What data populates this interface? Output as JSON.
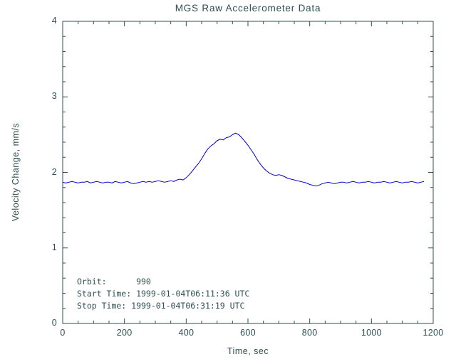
{
  "chart_data": {
    "type": "line",
    "title": "MGS Raw Accelerometer Data",
    "xlabel": "Time, sec",
    "ylabel": "Velocity Change, mm/s",
    "xlim": [
      0,
      1200
    ],
    "ylim": [
      0,
      4
    ],
    "x_ticks": [
      0,
      200,
      400,
      600,
      800,
      1000,
      1200
    ],
    "y_ticks": [
      0,
      1,
      2,
      3,
      4
    ],
    "x_minor_step": 50,
    "y_minor_step": 0.2,
    "grid": false,
    "legend": "none",
    "line_color": "#0000cd",
    "axis_color": "#2f4f4f",
    "background_color": "#ffffff",
    "annotations": [
      "Orbit:      990",
      "Start Time: 1999-01-04T06:11:36 UTC",
      "Stop Time: 1999-01-04T06:31:19 UTC"
    ],
    "series": [
      {
        "name": "velocity_change",
        "x": [
          0,
          10,
          20,
          30,
          40,
          50,
          60,
          70,
          80,
          90,
          100,
          110,
          120,
          130,
          140,
          150,
          160,
          170,
          180,
          190,
          200,
          210,
          220,
          230,
          240,
          250,
          260,
          270,
          280,
          290,
          300,
          310,
          320,
          330,
          340,
          350,
          360,
          370,
          380,
          390,
          400,
          410,
          420,
          430,
          440,
          450,
          460,
          470,
          480,
          490,
          500,
          510,
          520,
          530,
          540,
          550,
          560,
          570,
          580,
          590,
          600,
          610,
          620,
          630,
          640,
          650,
          660,
          670,
          680,
          690,
          700,
          710,
          720,
          730,
          740,
          750,
          760,
          770,
          780,
          790,
          800,
          810,
          820,
          830,
          840,
          850,
          860,
          870,
          880,
          890,
          900,
          910,
          920,
          930,
          940,
          950,
          960,
          970,
          980,
          990,
          1000,
          1010,
          1020,
          1030,
          1040,
          1050,
          1060,
          1070,
          1080,
          1090,
          1100,
          1110,
          1120,
          1130,
          1140,
          1150,
          1160,
          1170
        ],
        "y": [
          1.87,
          1.86,
          1.87,
          1.88,
          1.87,
          1.86,
          1.87,
          1.87,
          1.88,
          1.86,
          1.87,
          1.88,
          1.87,
          1.86,
          1.87,
          1.87,
          1.86,
          1.88,
          1.87,
          1.86,
          1.87,
          1.88,
          1.86,
          1.85,
          1.86,
          1.87,
          1.88,
          1.87,
          1.88,
          1.87,
          1.88,
          1.89,
          1.88,
          1.87,
          1.88,
          1.89,
          1.88,
          1.9,
          1.91,
          1.9,
          1.93,
          1.97,
          2.02,
          2.07,
          2.12,
          2.18,
          2.25,
          2.31,
          2.35,
          2.38,
          2.42,
          2.44,
          2.43,
          2.46,
          2.47,
          2.5,
          2.52,
          2.5,
          2.46,
          2.41,
          2.36,
          2.3,
          2.24,
          2.17,
          2.11,
          2.06,
          2.02,
          1.99,
          1.97,
          1.96,
          1.97,
          1.96,
          1.94,
          1.92,
          1.91,
          1.9,
          1.89,
          1.88,
          1.87,
          1.86,
          1.84,
          1.83,
          1.82,
          1.83,
          1.85,
          1.86,
          1.87,
          1.86,
          1.85,
          1.86,
          1.87,
          1.87,
          1.86,
          1.87,
          1.88,
          1.87,
          1.86,
          1.87,
          1.87,
          1.88,
          1.87,
          1.86,
          1.87,
          1.87,
          1.88,
          1.87,
          1.86,
          1.87,
          1.88,
          1.87,
          1.86,
          1.87,
          1.87,
          1.88,
          1.87,
          1.86,
          1.87,
          1.88
        ]
      }
    ]
  }
}
